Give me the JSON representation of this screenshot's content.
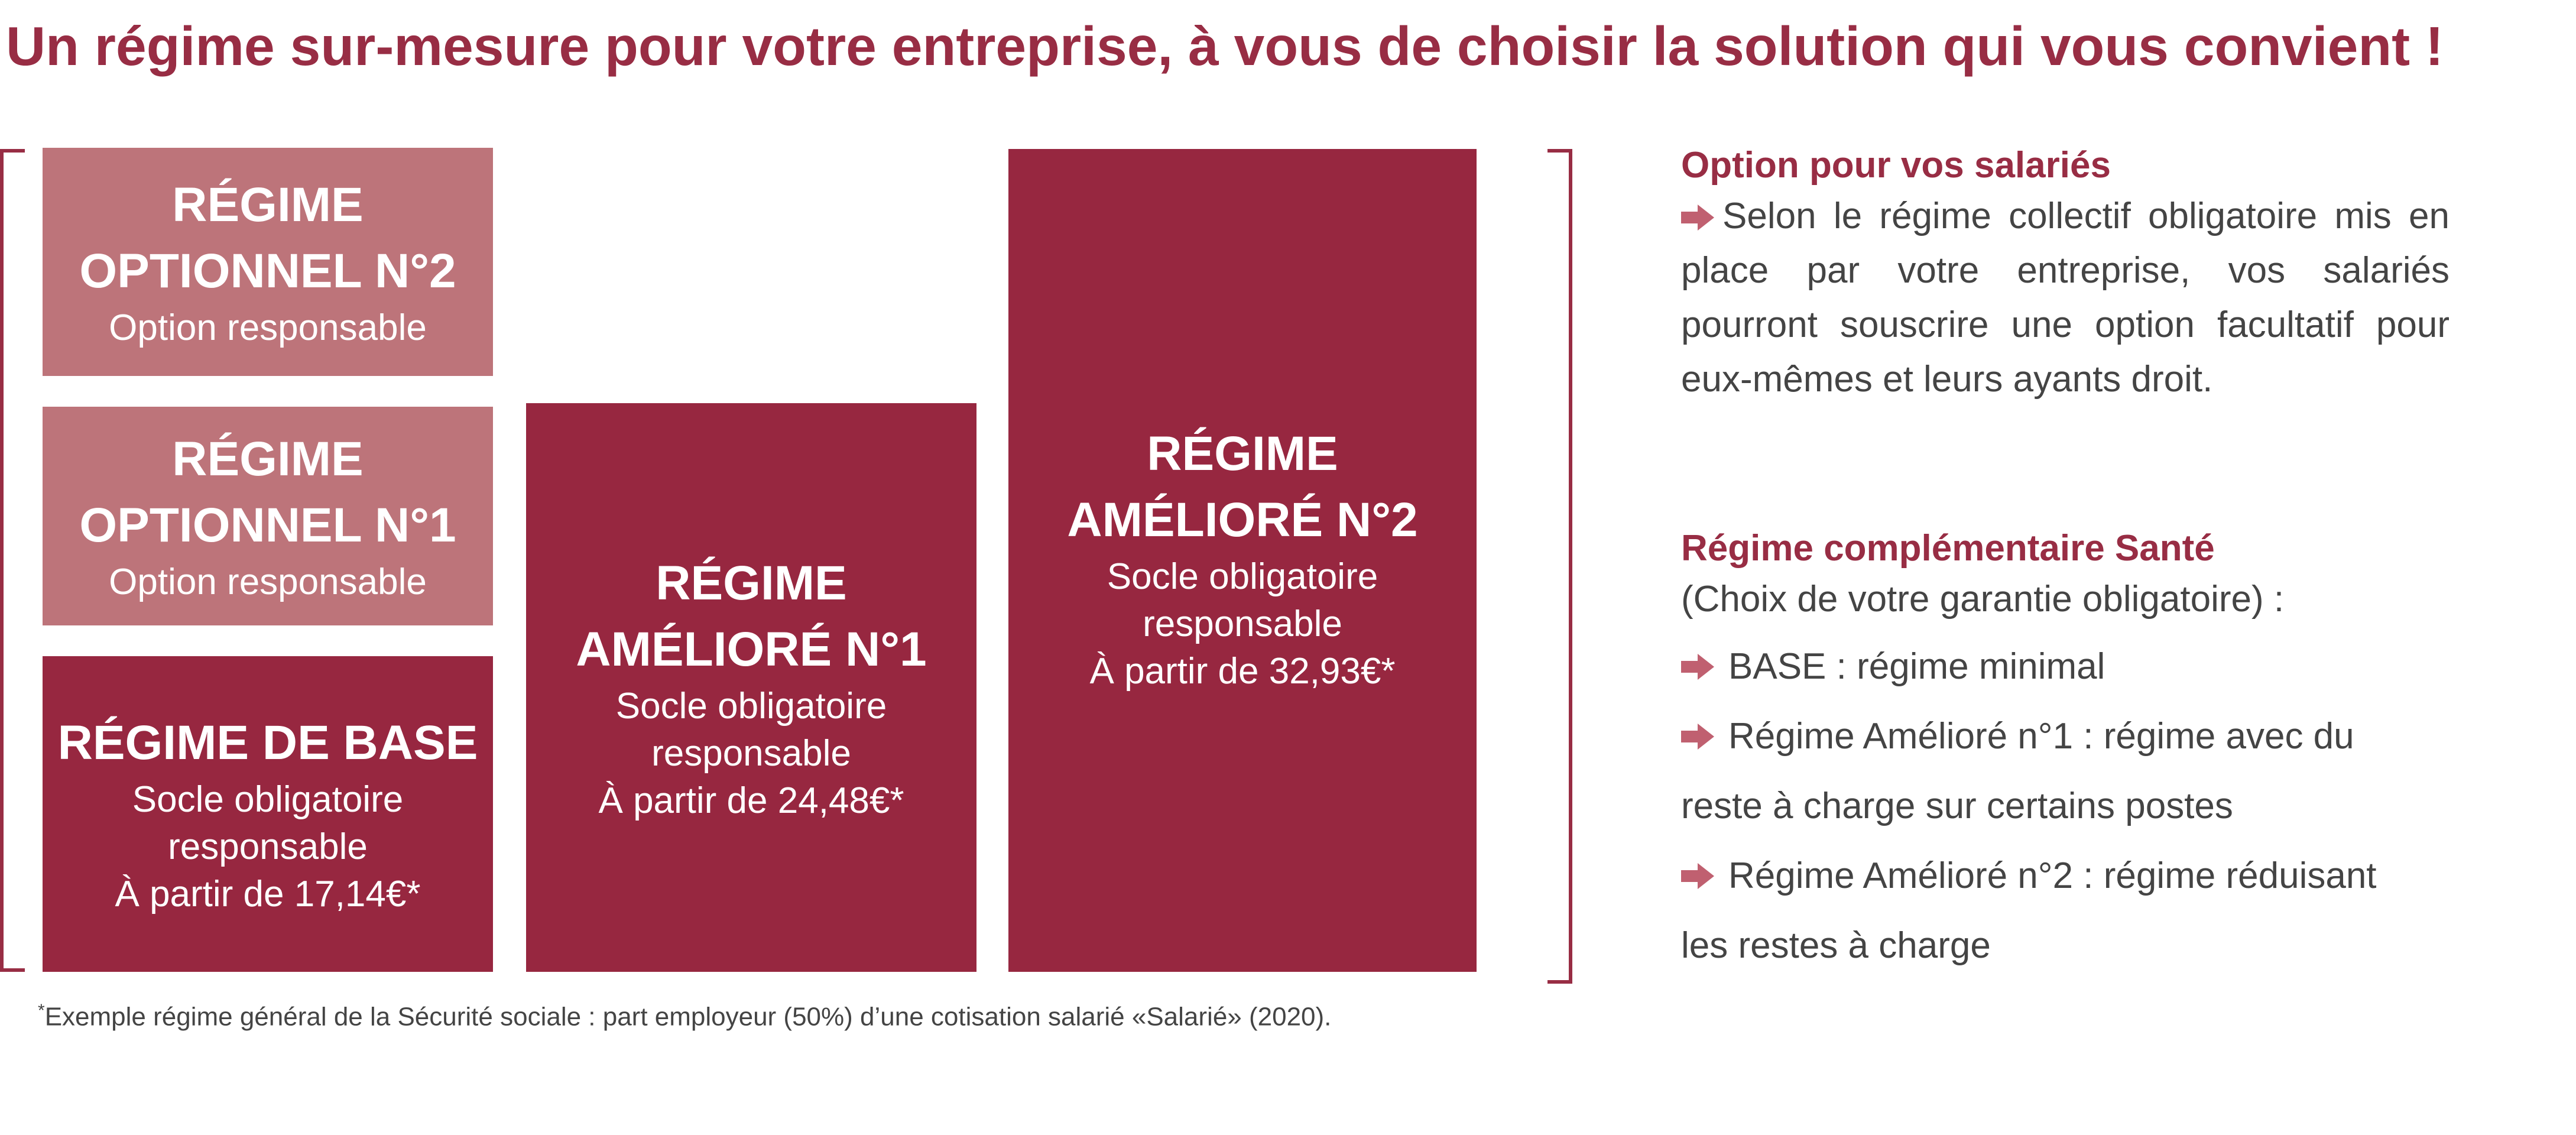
{
  "headline": "Un régime sur-mesure pour votre entreprise, à vous de choisir la solution qui vous convient !",
  "colors": {
    "brand": "#982d44",
    "box_dark": "#972740",
    "box_light": "#bd747a",
    "text": "#444444",
    "arrow": "#c06070"
  },
  "boxes": {
    "optionnel2": {
      "line1": "RÉGIME",
      "line2": "OPTIONNEL N°2",
      "sub1": "Option responsable"
    },
    "optionnel1": {
      "line1": "RÉGIME",
      "line2": "OPTIONNEL N°1",
      "sub1": "Option responsable"
    },
    "base": {
      "line1": "RÉGIME DE BASE",
      "sub1": "Socle obligatoire",
      "sub2": "responsable",
      "sub3": "À partir de 17,14€*"
    },
    "ameliore1": {
      "line1": "RÉGIME",
      "line2": "AMÉLIORÉ N°1",
      "sub1": "Socle obligatoire",
      "sub2": "responsable",
      "sub3": "À partir de 24,48€*"
    },
    "ameliore2": {
      "line1": "RÉGIME",
      "line2": "AMÉLIORÉ N°2",
      "sub1": "Socle obligatoire",
      "sub2": "responsable",
      "sub3": "À partir de 32,93€*"
    }
  },
  "footnote": {
    "marker": "*",
    "text": "Exemple régime général de la Sécurité sociale : part employeur (50%) d’une cotisation salarié «Salarié» (2020)."
  },
  "option_panel": {
    "title": "Option pour vos salariés",
    "text": "Selon le régime collectif obligatoire mis en place par votre entreprise, vos salariés pourront souscrire une option facultatif pour eux-mêmes et leurs ayants droit.",
    "arrow_icon": "arrow-right-icon"
  },
  "regime_panel": {
    "title": "Régime complémentaire Santé",
    "subtitle": "(Choix de votre garantie obligatoire) :",
    "items": [
      {
        "text": "BASE : régime minimal",
        "continuation": ""
      },
      {
        "text": "Régime Amélioré n°1 : régime avec du",
        "continuation": "reste à charge sur certains postes"
      },
      {
        "text": "Régime Amélioré n°2 : régime réduisant",
        "continuation": "les restes à charge"
      }
    ],
    "arrow_icon": "arrow-right-icon"
  }
}
